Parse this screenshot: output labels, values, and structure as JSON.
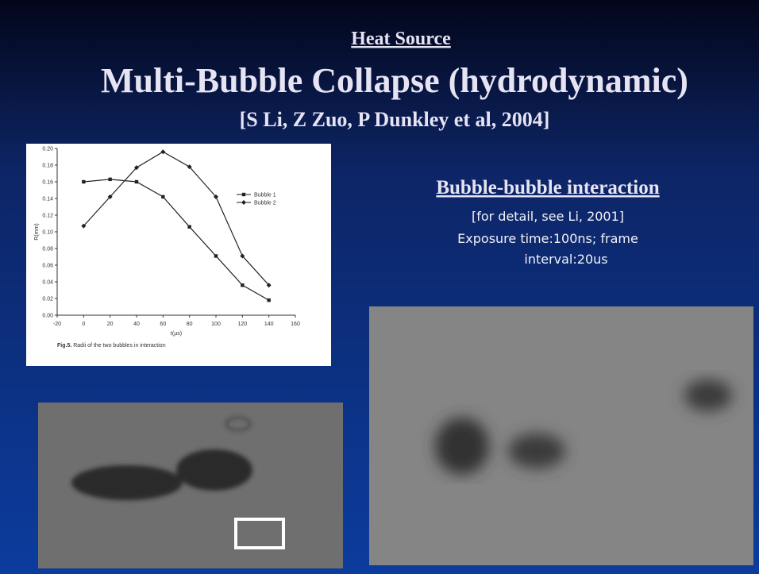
{
  "slide": {
    "kicker": "Heat Source",
    "title": "Multi-Bubble Collapse (hydrodynamic)",
    "citation": "[S Li, Z Zuo, P Dunkley et al, 2004]",
    "side_heading": "Bubble-bubble interaction",
    "side_lines": [
      "[for detail, see Li, 2001]",
      "Exposure time:100ns; frame",
      "interval:20us"
    ]
  },
  "chart_data": {
    "type": "line",
    "caption_prefix": "Fig.5.",
    "caption": "Radii of the two bubbles in interaction",
    "x_label": "t(µs)",
    "y_label": "R(mm)",
    "x": [
      0,
      20,
      40,
      60,
      80,
      100,
      120,
      140
    ],
    "series": [
      {
        "name": "Bubble 1",
        "color": "#222222",
        "marker": "square",
        "values": [
          0.16,
          0.163,
          0.16,
          0.142,
          0.106,
          0.071,
          0.036,
          0.018
        ]
      },
      {
        "name": "Bubble 2",
        "color": "#222222",
        "marker": "diamond",
        "values": [
          0.107,
          0.142,
          0.177,
          0.196,
          0.178,
          0.142,
          0.071,
          0.036
        ]
      }
    ],
    "xlim": [
      -20,
      160
    ],
    "xticks": [
      -20,
      0,
      20,
      40,
      60,
      80,
      100,
      120,
      140,
      160
    ],
    "ylim": [
      0,
      0.2
    ],
    "yticks": [
      {
        "value": 0,
        "label": "0.00"
      },
      {
        "value": 0.02,
        "label": "0.02"
      },
      {
        "value": 0.04,
        "label": "0.04"
      },
      {
        "value": 0.06,
        "label": "0.06"
      },
      {
        "value": 0.08,
        "label": "0.08"
      },
      {
        "value": 0.1,
        "label": "0.10"
      },
      {
        "value": 0.12,
        "label": "0.12"
      },
      {
        "value": 0.14,
        "label": "0.14"
      },
      {
        "value": 0.16,
        "label": "0.16"
      },
      {
        "value": 0.18,
        "label": "0.18"
      },
      {
        "value": 0.2,
        "label": "0.20"
      }
    ],
    "legend": "upper right"
  }
}
